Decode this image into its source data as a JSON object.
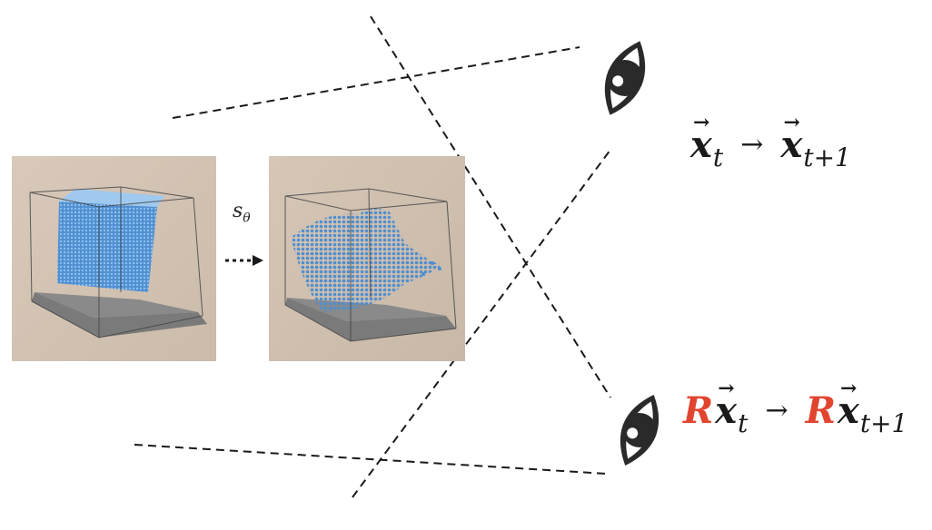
{
  "colors": {
    "background": "#ffffff",
    "rotation_accent": "#e2452f",
    "particle_blue": "#4f8fd1",
    "dash_line": "#1a1a1a",
    "eye": "#2a2a2a"
  },
  "icons": [
    "eye-icon-top",
    "eye-icon-bottom",
    "dotted-arrow-icon"
  ],
  "labels": {
    "model": "s",
    "model_sub": "θ"
  },
  "equations": {
    "top": {
      "lhs_var": "x",
      "lhs_sub": "t",
      "arrow": "→",
      "rhs_var": "x",
      "rhs_sub": "t+1"
    },
    "bottom": {
      "rotation": "R",
      "lhs_var": "x",
      "lhs_sub": "t",
      "arrow": "→",
      "rhs_rotation": "R",
      "rhs_var": "x",
      "rhs_sub": "t+1"
    },
    "vector_mark": "⃗"
  }
}
